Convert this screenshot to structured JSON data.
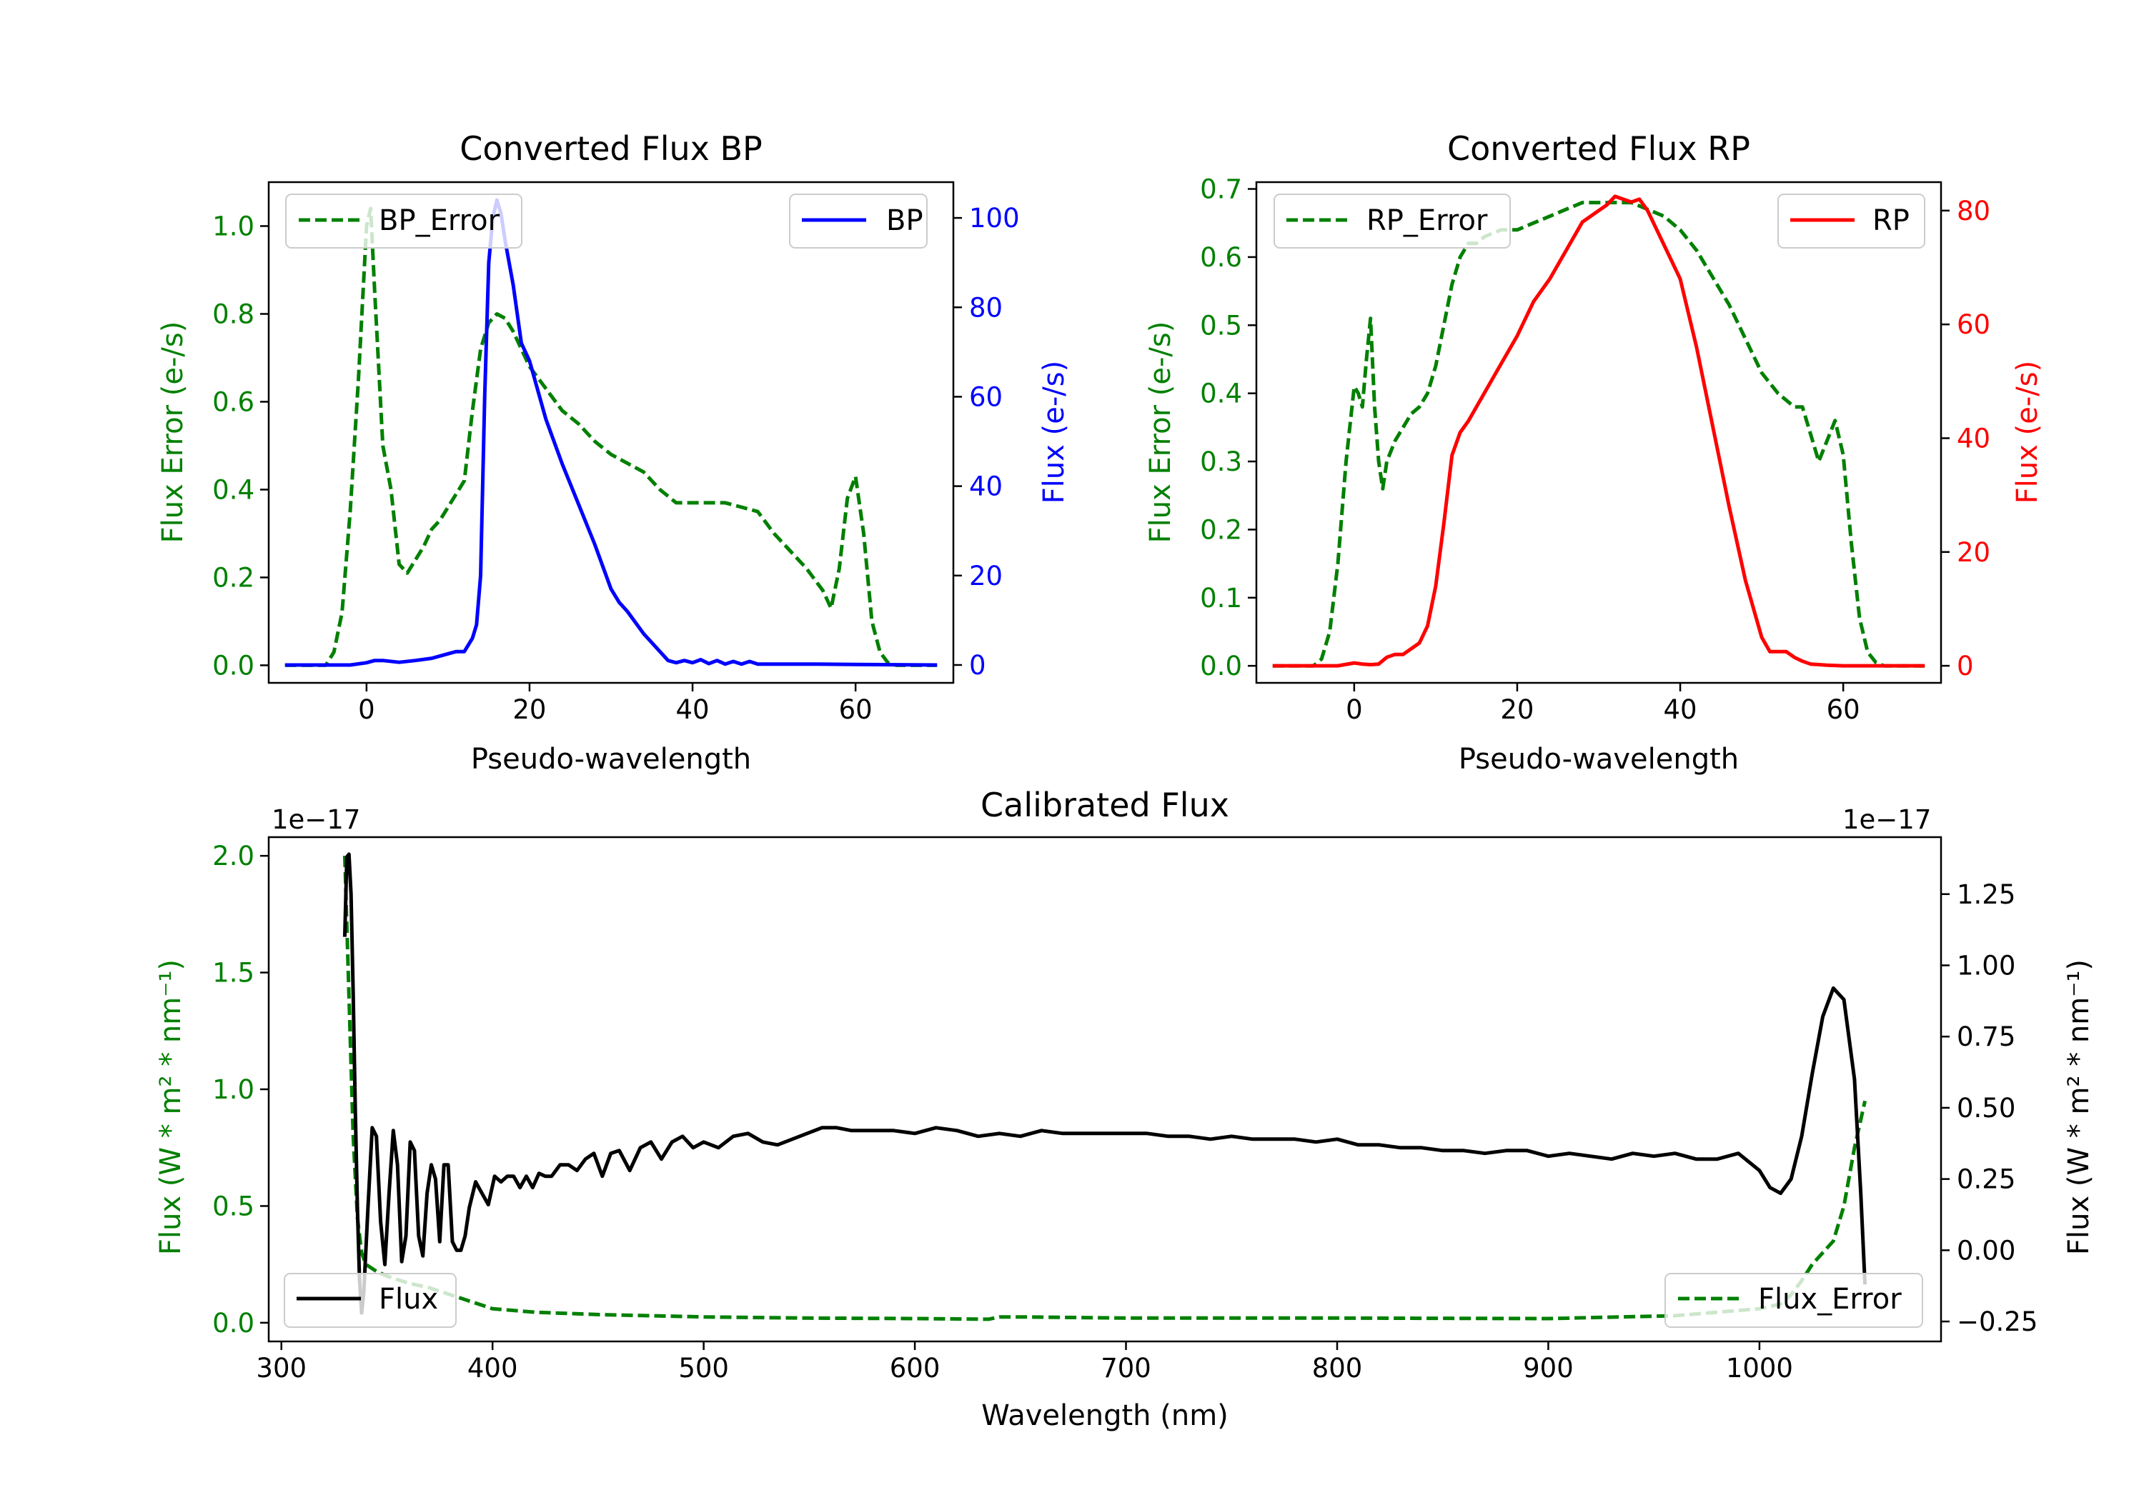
{
  "colors": {
    "green": "#008000",
    "blue": "#0000ff",
    "red": "#ff0000",
    "black": "#000000"
  },
  "chart_data": [
    {
      "id": "bp",
      "type": "line",
      "title": "Converted Flux BP",
      "xlabel": "Pseudo-wavelength",
      "ylabel_left": "Flux Error (e-/s)",
      "ylabel_right": "Flux (e-/s)",
      "xlim": [
        -12,
        72
      ],
      "ylim_left": [
        -0.04,
        1.1
      ],
      "ylim_right": [
        -4,
        108
      ],
      "xticks": [
        0,
        20,
        40,
        60
      ],
      "yticks_left": [
        0.0,
        0.2,
        0.4,
        0.6,
        0.8,
        1.0
      ],
      "yticks_left_labels": [
        "0.0",
        "0.2",
        "0.4",
        "0.6",
        "0.8",
        "1.0"
      ],
      "yticks_right": [
        0,
        20,
        40,
        60,
        80,
        100
      ],
      "yticks_right_labels": [
        "0",
        "20",
        "40",
        "60",
        "80",
        "100"
      ],
      "legend_left": "BP_Error",
      "legend_right": "BP",
      "series": [
        {
          "name": "BP_Error",
          "axis": "left",
          "style": "dashed",
          "color": "#008000",
          "x": [
            -10,
            -5,
            -4,
            -3,
            -2,
            -1,
            0,
            0.5,
            1,
            2,
            3,
            4,
            5,
            6,
            7,
            8,
            9,
            10,
            12,
            13,
            14,
            15,
            16,
            17,
            18,
            19,
            20,
            22,
            24,
            26,
            28,
            30,
            32,
            34,
            36,
            38,
            40,
            42,
            44,
            46,
            48,
            50,
            52,
            54,
            56,
            57,
            58,
            59,
            60,
            61,
            62,
            63,
            64,
            65,
            70
          ],
          "y": [
            0.0,
            0.0,
            0.03,
            0.12,
            0.35,
            0.65,
            1.0,
            1.04,
            0.85,
            0.5,
            0.4,
            0.23,
            0.21,
            0.24,
            0.27,
            0.31,
            0.33,
            0.36,
            0.42,
            0.58,
            0.72,
            0.78,
            0.8,
            0.79,
            0.76,
            0.72,
            0.68,
            0.63,
            0.58,
            0.55,
            0.51,
            0.48,
            0.46,
            0.44,
            0.4,
            0.37,
            0.37,
            0.37,
            0.37,
            0.36,
            0.35,
            0.3,
            0.26,
            0.22,
            0.17,
            0.13,
            0.22,
            0.38,
            0.43,
            0.3,
            0.1,
            0.03,
            0.005,
            0.0,
            0.0
          ]
        },
        {
          "name": "BP",
          "axis": "right",
          "style": "solid",
          "color": "#0000ff",
          "x": [
            -10,
            -2,
            0,
            1,
            2,
            4,
            6,
            8,
            10,
            11,
            12,
            13,
            13.5,
            14,
            14.5,
            15,
            15.5,
            16,
            16.5,
            17,
            18,
            19,
            20,
            22,
            24,
            26,
            28,
            30,
            31,
            32,
            34,
            36,
            37,
            38,
            39,
            40,
            41,
            42,
            43,
            44,
            45,
            46,
            47,
            48,
            50,
            55,
            60,
            70
          ],
          "y": [
            0,
            0,
            0.5,
            1,
            1,
            0.6,
            1,
            1.5,
            2.5,
            3,
            3,
            6,
            9,
            20,
            60,
            90,
            100,
            104,
            101,
            95,
            85,
            72,
            68,
            55,
            45,
            36,
            27,
            17,
            14,
            12,
            7,
            3,
            1,
            0.5,
            1,
            0.5,
            1.2,
            0.3,
            1,
            0.2,
            0.8,
            0.2,
            0.8,
            0.2,
            0.2,
            0.2,
            0.1,
            0
          ]
        }
      ]
    },
    {
      "id": "rp",
      "type": "line",
      "title": "Converted Flux RP",
      "xlabel": "Pseudo-wavelength",
      "ylabel_left": "Flux Error (e-/s)",
      "ylabel_right": "Flux (e-/s)",
      "xlim": [
        -12,
        72
      ],
      "ylim_left": [
        -0.025,
        0.71
      ],
      "ylim_right": [
        -3,
        85
      ],
      "xticks": [
        0,
        20,
        40,
        60
      ],
      "yticks_left": [
        0.0,
        0.1,
        0.2,
        0.3,
        0.4,
        0.5,
        0.6,
        0.7
      ],
      "yticks_left_labels": [
        "0.0",
        "0.1",
        "0.2",
        "0.3",
        "0.4",
        "0.5",
        "0.6",
        "0.7"
      ],
      "yticks_right": [
        0,
        20,
        40,
        60,
        80
      ],
      "yticks_right_labels": [
        "0",
        "20",
        "40",
        "60",
        "80"
      ],
      "legend_left": "RP_Error",
      "legend_right": "RP",
      "series": [
        {
          "name": "RP_Error",
          "axis": "left",
          "style": "dashed",
          "color": "#008000",
          "x": [
            -10,
            -5,
            -4,
            -3,
            -2,
            -1,
            0,
            0.5,
            1,
            1.5,
            2,
            2.5,
            3,
            3.5,
            4,
            5,
            6,
            7,
            8,
            9,
            10,
            11,
            12,
            13,
            14,
            15,
            16,
            18,
            20,
            22,
            24,
            26,
            28,
            30,
            32,
            34,
            36,
            38,
            40,
            42,
            44,
            46,
            48,
            50,
            52,
            53,
            54,
            55,
            56,
            57,
            58,
            59,
            60,
            61,
            62,
            63,
            64,
            65,
            70
          ],
          "y": [
            0.0,
            0.0,
            0.01,
            0.05,
            0.15,
            0.3,
            0.41,
            0.4,
            0.38,
            0.45,
            0.51,
            0.38,
            0.3,
            0.26,
            0.3,
            0.33,
            0.35,
            0.37,
            0.38,
            0.4,
            0.44,
            0.5,
            0.56,
            0.6,
            0.62,
            0.62,
            0.63,
            0.64,
            0.64,
            0.65,
            0.66,
            0.67,
            0.68,
            0.68,
            0.68,
            0.68,
            0.67,
            0.66,
            0.64,
            0.61,
            0.57,
            0.53,
            0.48,
            0.43,
            0.4,
            0.39,
            0.38,
            0.38,
            0.34,
            0.3,
            0.33,
            0.36,
            0.31,
            0.18,
            0.07,
            0.02,
            0.005,
            0.0,
            0.0
          ]
        },
        {
          "name": "RP",
          "axis": "right",
          "style": "solid",
          "color": "#ff0000",
          "x": [
            -10,
            -2,
            0,
            1,
            2,
            3,
            4,
            5,
            6,
            7,
            8,
            9,
            10,
            11,
            12,
            13,
            14,
            16,
            18,
            20,
            22,
            24,
            26,
            28,
            29,
            30,
            31,
            32,
            33,
            34,
            35,
            36,
            37,
            38,
            40,
            42,
            44,
            46,
            48,
            50,
            51,
            52,
            53,
            54,
            55,
            56,
            58,
            60,
            70
          ],
          "y": [
            0,
            0,
            0.5,
            0.3,
            0.2,
            0.3,
            1.5,
            2,
            2,
            3,
            4,
            7,
            14,
            25,
            37,
            41,
            43,
            48,
            53,
            58,
            64,
            68,
            73,
            78,
            79,
            80,
            81,
            82.5,
            82,
            81.5,
            82,
            80,
            77,
            74,
            68,
            56,
            42,
            28,
            15,
            5,
            2.5,
            2.5,
            2.5,
            1.5,
            0.8,
            0.3,
            0.1,
            0,
            0
          ]
        }
      ]
    },
    {
      "id": "calibrated",
      "type": "line",
      "title": "Calibrated Flux",
      "xlabel": "Wavelength (nm)",
      "ylabel_left": "Flux (W * m² * nm⁻¹)",
      "ylabel_right": "Flux (W * m² * nm⁻¹)",
      "offset_left": "1e−17",
      "offset_right": "1e−17",
      "xlim": [
        294,
        1086
      ],
      "ylim_left": [
        -0.08,
        2.08
      ],
      "ylim_right": [
        -0.32,
        1.45
      ],
      "xticks": [
        300,
        400,
        500,
        600,
        700,
        800,
        900,
        1000
      ],
      "yticks_left": [
        0.0,
        0.5,
        1.0,
        1.5,
        2.0
      ],
      "yticks_left_labels": [
        "0.0",
        "0.5",
        "1.0",
        "1.5",
        "2.0"
      ],
      "yticks_right": [
        -0.25,
        0.0,
        0.25,
        0.5,
        0.75,
        1.0,
        1.25
      ],
      "yticks_right_labels": [
        "−0.25",
        "0.00",
        "0.25",
        "0.50",
        "0.75",
        "1.00",
        "1.25"
      ],
      "legend_left": "Flux",
      "legend_right": "Flux_Error",
      "series": [
        {
          "name": "Flux_Error",
          "axis": "left",
          "style": "dashed",
          "color": "#008000",
          "x": [
            330,
            332,
            334,
            336,
            338,
            340,
            345,
            350,
            360,
            370,
            380,
            390,
            400,
            420,
            450,
            500,
            550,
            600,
            635,
            640,
            650,
            700,
            800,
            900,
            960,
            1000,
            1010,
            1015,
            1020,
            1025,
            1030,
            1035,
            1040,
            1045,
            1050
          ],
          "y": [
            2.0,
            1.4,
            0.8,
            0.45,
            0.3,
            0.25,
            0.22,
            0.2,
            0.17,
            0.15,
            0.12,
            0.09,
            0.06,
            0.045,
            0.035,
            0.025,
            0.02,
            0.018,
            0.015,
            0.025,
            0.025,
            0.02,
            0.02,
            0.018,
            0.03,
            0.06,
            0.08,
            0.12,
            0.18,
            0.25,
            0.3,
            0.35,
            0.5,
            0.75,
            0.95
          ]
        },
        {
          "name": "Flux",
          "axis": "right",
          "style": "solid",
          "color": "#000000",
          "x": [
            330,
            331,
            332,
            333,
            334,
            335,
            336,
            337,
            338,
            339,
            341,
            343,
            345,
            347,
            349,
            351,
            353,
            355,
            357,
            359,
            361,
            363,
            365,
            367,
            369,
            371,
            373,
            375,
            377,
            379,
            381,
            383,
            385,
            387,
            389,
            392,
            395,
            398,
            401,
            404,
            407,
            410,
            413,
            416,
            419,
            422,
            425,
            428,
            432,
            436,
            440,
            444,
            448,
            452,
            456,
            460,
            465,
            470,
            475,
            480,
            485,
            490,
            495,
            500,
            507,
            514,
            521,
            528,
            535,
            542,
            549,
            556,
            563,
            570,
            580,
            590,
            600,
            610,
            620,
            630,
            640,
            650,
            660,
            670,
            680,
            690,
            700,
            710,
            720,
            730,
            740,
            750,
            760,
            770,
            780,
            790,
            800,
            810,
            820,
            830,
            840,
            850,
            860,
            870,
            880,
            890,
            900,
            910,
            920,
            930,
            940,
            950,
            960,
            970,
            980,
            990,
            1000,
            1005,
            1010,
            1015,
            1020,
            1025,
            1030,
            1035,
            1040,
            1045,
            1048,
            1050
          ],
          "y": [
            1.1,
            1.38,
            1.39,
            1.25,
            0.9,
            0.5,
            0.15,
            -0.1,
            -0.22,
            -0.15,
            0.15,
            0.43,
            0.4,
            0.1,
            -0.05,
            0.2,
            0.42,
            0.3,
            -0.04,
            0.05,
            0.38,
            0.35,
            0.05,
            -0.02,
            0.2,
            0.3,
            0.25,
            0.03,
            0.3,
            0.3,
            0.03,
            0.0,
            0.0,
            0.05,
            0.15,
            0.24,
            0.2,
            0.16,
            0.26,
            0.24,
            0.26,
            0.26,
            0.22,
            0.26,
            0.22,
            0.27,
            0.26,
            0.26,
            0.3,
            0.3,
            0.28,
            0.32,
            0.34,
            0.26,
            0.34,
            0.35,
            0.28,
            0.36,
            0.38,
            0.32,
            0.38,
            0.4,
            0.36,
            0.38,
            0.36,
            0.4,
            0.41,
            0.38,
            0.37,
            0.39,
            0.41,
            0.43,
            0.43,
            0.42,
            0.42,
            0.42,
            0.41,
            0.43,
            0.42,
            0.4,
            0.41,
            0.4,
            0.42,
            0.41,
            0.41,
            0.41,
            0.41,
            0.41,
            0.4,
            0.4,
            0.39,
            0.4,
            0.39,
            0.39,
            0.39,
            0.38,
            0.39,
            0.37,
            0.37,
            0.36,
            0.36,
            0.35,
            0.35,
            0.34,
            0.35,
            0.35,
            0.33,
            0.34,
            0.33,
            0.32,
            0.34,
            0.33,
            0.34,
            0.32,
            0.32,
            0.34,
            0.28,
            0.22,
            0.2,
            0.25,
            0.4,
            0.62,
            0.82,
            0.92,
            0.88,
            0.6,
            0.2,
            -0.12
          ]
        }
      ]
    }
  ]
}
